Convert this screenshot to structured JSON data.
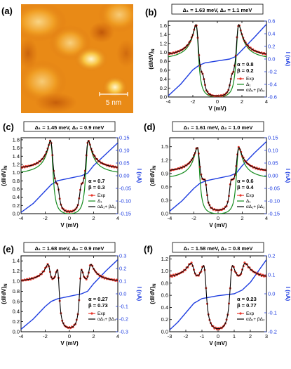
{
  "panel_a": {
    "label": "(a)",
    "scale_bar": "5 nm"
  },
  "colors": {
    "exp": "#e8372c",
    "delta1": "#138a1c",
    "combined": "#000000",
    "current": "#1f3ee0",
    "right_axis": "#1f3ee0"
  },
  "chart_data": [
    {
      "panel": "b",
      "label": "(b)",
      "type": "line",
      "title": "Δ₁ = 1.63 meV, Δ₂ = 1.1 meV",
      "xlabel": "V (mV)",
      "ylabel": "(dI/dV)N",
      "ylabel_main": "(dI/dV)",
      "ylabel_sub": "N",
      "y2label": "I (nA)",
      "xlim": [
        -4,
        4
      ],
      "ylim": [
        0,
        1.7
      ],
      "y2lim": [
        -0.6,
        0.6
      ],
      "xticks": [
        -4,
        -2,
        0,
        2,
        4
      ],
      "yticks": [
        0.0,
        0.2,
        0.4,
        0.6,
        0.8,
        1.0,
        1.2,
        1.4,
        1.6
      ],
      "y2ticks": [
        -0.6,
        -0.4,
        -0.2,
        0.0,
        0.2,
        0.4,
        0.6
      ],
      "params": [
        "α = 0.8",
        "β = 0.2"
      ],
      "legend": [
        {
          "key": "exp",
          "label": "Exp"
        },
        {
          "key": "delta1",
          "label": "Δ₁"
        },
        {
          "key": "combined",
          "label": "αΔ₁+ βΔ₂"
        }
      ],
      "spectrum": {
        "gap1": 1.63,
        "gap2": 1.1,
        "alpha": 0.8,
        "beta": 0.2,
        "peak": 1.62,
        "floor": 0.02,
        "background": 0.97
      },
      "current": {
        "x": [
          -4,
          -3,
          -2,
          -1.5,
          -1,
          0,
          1,
          1.5,
          2,
          3,
          4
        ],
        "y": [
          -0.58,
          -0.4,
          -0.17,
          -0.1,
          -0.06,
          -0.03,
          0.0,
          0.04,
          0.14,
          0.34,
          0.55
        ]
      },
      "has_delta1_curve": true,
      "legend_position": "right, below α/β"
    },
    {
      "panel": "c",
      "label": "(c)",
      "type": "line",
      "title": "Δ₁ = 1.45 meV, Δ₂ = 0.9 meV",
      "xlabel": "V (mV)",
      "ylabel": "(dI/dV)N",
      "ylabel_main": "(dI/dV)",
      "ylabel_sub": "N",
      "y2label": "I (nA)",
      "xlim": [
        -4,
        4
      ],
      "ylim": [
        0,
        1.85
      ],
      "y2lim": [
        -0.15,
        0.15
      ],
      "xticks": [
        -4,
        -2,
        0,
        2,
        4
      ],
      "yticks": [
        0.0,
        0.2,
        0.4,
        0.6,
        0.8,
        1.0,
        1.2,
        1.4,
        1.6,
        1.8
      ],
      "y2ticks": [
        -0.15,
        -0.1,
        -0.05,
        0.0,
        0.05,
        0.1,
        0.15
      ],
      "params": [
        "α = 0.7",
        "β = 0.3"
      ],
      "legend": [
        {
          "key": "exp",
          "label": "Exp"
        },
        {
          "key": "delta1",
          "label": "Δ₁"
        },
        {
          "key": "combined",
          "label": "αΔ₁+ βΔ₂"
        }
      ],
      "spectrum": {
        "gap1": 1.45,
        "gap2": 0.9,
        "alpha": 0.7,
        "beta": 0.3,
        "peak": 1.78,
        "floor": 0.05,
        "background": 1.0
      },
      "current": {
        "x": [
          -4,
          -3,
          -2,
          -1.5,
          -1,
          0,
          1,
          1.5,
          2,
          3,
          4
        ],
        "y": [
          -0.145,
          -0.11,
          -0.06,
          -0.035,
          -0.02,
          -0.01,
          0.0,
          0.01,
          0.04,
          0.085,
          0.13
        ]
      },
      "has_delta1_curve": true,
      "legend_position": "right, below α/β"
    },
    {
      "panel": "d",
      "label": "(d)",
      "type": "line",
      "title": "Δ₁ = 1.61 meV, Δ₂ = 1.0 meV",
      "xlabel": "V (mV)",
      "ylabel": "(dI/dV)N",
      "ylabel_main": "(dI/dV)",
      "ylabel_sub": "N",
      "y2label": "I (nA)",
      "xlim": [
        -4,
        4
      ],
      "ylim": [
        0,
        1.7
      ],
      "y2lim": [
        -0.15,
        0.15
      ],
      "xticks": [
        -4,
        -2,
        0,
        2,
        4
      ],
      "yticks": [
        0.0,
        0.3,
        0.6,
        0.9,
        1.2,
        1.5
      ],
      "y2ticks": [
        -0.15,
        -0.1,
        -0.05,
        0.0,
        0.05,
        0.1,
        0.15
      ],
      "params": [
        "α = 0.6",
        "β = 0.4"
      ],
      "legend": [
        {
          "key": "exp",
          "label": "Exp"
        },
        {
          "key": "delta1",
          "label": "Δ₁"
        },
        {
          "key": "combined",
          "label": "αΔ₁+ βΔ₂"
        }
      ],
      "spectrum": {
        "gap1": 1.61,
        "gap2": 1.0,
        "alpha": 0.6,
        "beta": 0.4,
        "peak": 1.48,
        "floor": 0.08,
        "background": 1.0
      },
      "current": {
        "x": [
          -4,
          -3,
          -2,
          -1.5,
          -1,
          0,
          1,
          1.5,
          2,
          3,
          4
        ],
        "y": [
          -0.14,
          -0.1,
          -0.05,
          -0.03,
          -0.02,
          -0.01,
          0.0,
          0.01,
          0.04,
          0.09,
          0.135
        ]
      },
      "has_delta1_curve": true,
      "legend_position": "right, below α/β"
    },
    {
      "panel": "e",
      "label": "(e)",
      "type": "line",
      "title": "Δ₁ = 1.68 meV, Δ₂ = 0.9 meV",
      "xlabel": "V (mV)",
      "ylabel": "(dI/dV)N",
      "ylabel_main": "(dI/dV)",
      "ylabel_sub": "N",
      "y2label": "I (nA)",
      "xlim": [
        -4,
        4
      ],
      "ylim": [
        0,
        1.5
      ],
      "y2lim": [
        -0.3,
        0.3
      ],
      "xticks": [
        -4,
        -2,
        0,
        2,
        4
      ],
      "yticks": [
        0.0,
        0.2,
        0.4,
        0.6,
        0.8,
        1.0,
        1.2,
        1.4
      ],
      "y2ticks": [
        -0.3,
        -0.2,
        -0.1,
        0.0,
        0.1,
        0.2,
        0.3
      ],
      "params": [
        "α = 0.27",
        "β = 0.73"
      ],
      "legend": [
        {
          "key": "exp",
          "label": "Exp"
        },
        {
          "key": "combined",
          "label": "αΔ₁+ βΔ₂"
        }
      ],
      "spectrum": {
        "gap1": 1.68,
        "gap2": 0.9,
        "alpha": 0.27,
        "beta": 0.73,
        "peak": 1.33,
        "floor": 0.08,
        "background": 1.0
      },
      "current": {
        "x": [
          -4,
          -3,
          -2,
          -1.5,
          -1,
          0,
          1,
          1.5,
          2,
          3,
          4
        ],
        "y": [
          -0.28,
          -0.2,
          -0.1,
          -0.06,
          -0.04,
          -0.02,
          0.0,
          0.02,
          0.08,
          0.18,
          0.27
        ]
      },
      "has_delta1_curve": false,
      "legend_position": "right, below α/β"
    },
    {
      "panel": "f",
      "label": "(f)",
      "type": "line",
      "title": "Δ₁ = 1.58 meV, Δ₂ = 0.8 meV",
      "xlabel": "V (mV)",
      "ylabel": "(dI/dV)N",
      "ylabel_main": "(dI/dV)",
      "ylabel_sub": "N",
      "y2label": "I (nA)",
      "xlim": [
        -3,
        3
      ],
      "ylim": [
        0,
        1.25
      ],
      "y2lim": [
        -0.2,
        0.2
      ],
      "xticks": [
        -3,
        -2,
        -1,
        0,
        1,
        2,
        3
      ],
      "yticks": [
        0.0,
        0.2,
        0.4,
        0.6,
        0.8,
        1.0,
        1.2
      ],
      "y2ticks": [
        -0.2,
        -0.1,
        0.0,
        0.1,
        0.2
      ],
      "params": [
        "α = 0.23",
        "β = 0.77"
      ],
      "legend": [
        {
          "key": "exp",
          "label": "Exp"
        },
        {
          "key": "combined",
          "label": "αΔ₁+ βΔ₂"
        }
      ],
      "spectrum": {
        "gap1": 1.58,
        "gap2": 0.8,
        "alpha": 0.23,
        "beta": 0.77,
        "peak": 1.13,
        "floor": 0.05,
        "background": 1.0
      },
      "current": {
        "x": [
          -3,
          -2.5,
          -2,
          -1.5,
          -1,
          0,
          1,
          1.5,
          2,
          2.5,
          3
        ],
        "y": [
          -0.19,
          -0.15,
          -0.1,
          -0.05,
          -0.025,
          -0.01,
          0.0,
          0.02,
          0.06,
          0.12,
          0.18
        ]
      },
      "has_delta1_curve": false,
      "legend_position": "right, below α/β"
    }
  ]
}
